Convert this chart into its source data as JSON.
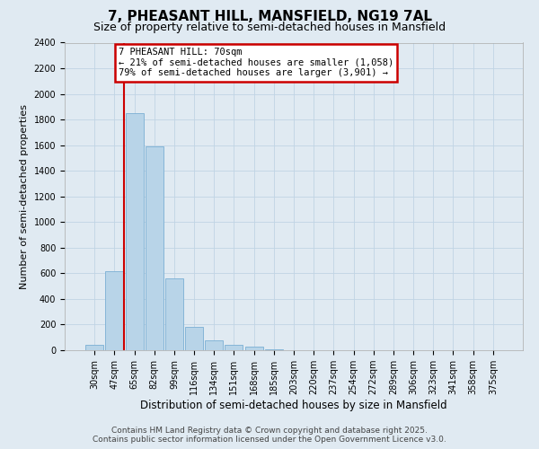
{
  "title": "7, PHEASANT HILL, MANSFIELD, NG19 7AL",
  "subtitle": "Size of property relative to semi-detached houses in Mansfield",
  "xlabel": "Distribution of semi-detached houses by size in Mansfield",
  "ylabel": "Number of semi-detached properties",
  "categories": [
    "30sqm",
    "47sqm",
    "65sqm",
    "82sqm",
    "99sqm",
    "116sqm",
    "134sqm",
    "151sqm",
    "168sqm",
    "185sqm",
    "203sqm",
    "220sqm",
    "237sqm",
    "254sqm",
    "272sqm",
    "289sqm",
    "306sqm",
    "323sqm",
    "341sqm",
    "358sqm",
    "375sqm"
  ],
  "values": [
    40,
    620,
    1850,
    1590,
    560,
    180,
    75,
    40,
    30,
    5,
    3,
    0,
    0,
    0,
    0,
    0,
    0,
    0,
    0,
    0,
    0
  ],
  "bar_color": "#b8d4e8",
  "bar_edge_color": "#7aafd4",
  "vline_color": "#cc0000",
  "vline_x": 1.5,
  "annotation_title": "7 PHEASANT HILL: 70sqm",
  "annotation_line1": "← 21% of semi-detached houses are smaller (1,058)",
  "annotation_line2": "79% of semi-detached houses are larger (3,901) →",
  "annotation_box_color": "#cc0000",
  "ylim": [
    0,
    2400
  ],
  "yticks": [
    0,
    200,
    400,
    600,
    800,
    1000,
    1200,
    1400,
    1600,
    1800,
    2000,
    2200,
    2400
  ],
  "grid_color": "#c0d4e4",
  "background_color": "#e0eaf2",
  "footer_line1": "Contains HM Land Registry data © Crown copyright and database right 2025.",
  "footer_line2": "Contains public sector information licensed under the Open Government Licence v3.0.",
  "title_fontsize": 11,
  "subtitle_fontsize": 9,
  "xlabel_fontsize": 8.5,
  "ylabel_fontsize": 8,
  "tick_fontsize": 7,
  "ann_fontsize": 7.5,
  "footer_fontsize": 6.5
}
